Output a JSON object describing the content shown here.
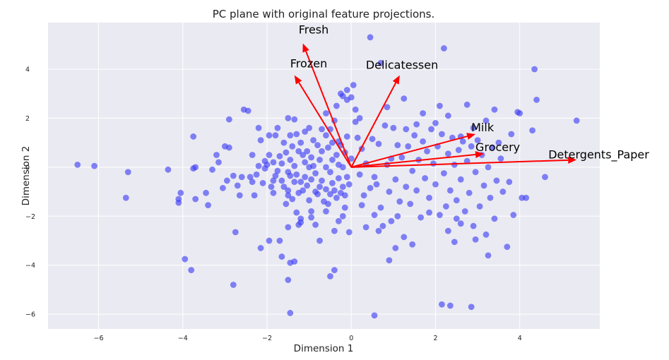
{
  "chart_data": {
    "type": "scatter",
    "title": "PC plane with original feature projections.",
    "xlabel": "Dimension 1",
    "ylabel": "Dimension 2",
    "xlim": [
      -7.2,
      5.9
    ],
    "ylim": [
      -6.6,
      5.9
    ],
    "x_ticks": [
      -6,
      -4,
      -2,
      0,
      2,
      4
    ],
    "y_ticks": [
      -6,
      -4,
      -2,
      0,
      2,
      4
    ],
    "x_tick_labels": [
      "−6",
      "−4",
      "−2",
      "0",
      "2",
      "4"
    ],
    "y_tick_labels": [
      "−6",
      "−4",
      "−2",
      "0",
      "2",
      "4"
    ],
    "grid": true,
    "style": {
      "background": "#eaeaf2",
      "grid_color": "#ffffff",
      "point_color": "#3b3bf5",
      "vector_color": "#ff0000"
    },
    "series": [
      {
        "points": [
          [
            -6.5,
            0.1
          ],
          [
            -6.1,
            0.05
          ],
          [
            -5.3,
            -0.2
          ],
          [
            -5.35,
            -1.25
          ],
          [
            -4.35,
            -0.1
          ],
          [
            -4.1,
            -1.3
          ],
          [
            -4.1,
            -1.45
          ],
          [
            -4.05,
            -1.05
          ],
          [
            -3.95,
            -3.75
          ],
          [
            -3.8,
            -4.2
          ],
          [
            -3.75,
            1.25
          ],
          [
            -3.75,
            -0.05
          ],
          [
            -3.7,
            0.0
          ],
          [
            -3.7,
            -1.3
          ],
          [
            -3.45,
            -1.05
          ],
          [
            -3.4,
            -1.55
          ],
          [
            -3.3,
            -0.1
          ],
          [
            -3.2,
            0.5
          ],
          [
            -3.15,
            0.2
          ],
          [
            -3.05,
            -0.85
          ],
          [
            -3.0,
            0.85
          ],
          [
            -2.9,
            0.8
          ],
          [
            -2.9,
            1.95
          ],
          [
            -2.95,
            -0.55
          ],
          [
            -2.8,
            -4.8
          ],
          [
            -2.8,
            -0.35
          ],
          [
            -2.75,
            -2.65
          ],
          [
            -2.7,
            -0.75
          ],
          [
            -2.65,
            -1.15
          ],
          [
            -2.6,
            -0.4
          ],
          [
            -2.55,
            2.35
          ],
          [
            -2.45,
            2.3
          ],
          [
            -2.4,
            -0.4
          ],
          [
            -2.35,
            0.5
          ],
          [
            -2.35,
            -0.6
          ],
          [
            -2.3,
            -1.15
          ],
          [
            -2.25,
            -0.3
          ],
          [
            -2.2,
            0.05
          ],
          [
            -2.2,
            1.6
          ],
          [
            -2.15,
            1.1
          ],
          [
            -2.1,
            -0.65
          ],
          [
            -2.05,
            0.25
          ],
          [
            -2.05,
            -0.05
          ],
          [
            -2.0,
            0.1
          ],
          [
            -1.95,
            1.3
          ],
          [
            -1.95,
            0.5
          ],
          [
            -1.95,
            -3.0
          ],
          [
            -1.9,
            -0.8
          ],
          [
            -1.85,
            -0.55
          ],
          [
            -1.85,
            0.2
          ],
          [
            -1.8,
            -0.35
          ],
          [
            -1.8,
            1.3
          ],
          [
            -1.75,
            1.6
          ],
          [
            -1.75,
            -0.15
          ],
          [
            -1.7,
            -3.0
          ],
          [
            -1.7,
            0.45
          ],
          [
            -1.65,
            0.15
          ],
          [
            -1.65,
            -0.55
          ],
          [
            -1.6,
            1.0
          ],
          [
            -1.6,
            -0.8
          ],
          [
            -1.55,
            0.6
          ],
          [
            -1.5,
            -0.2
          ],
          [
            -1.5,
            -0.95
          ],
          [
            -1.5,
            -1.15
          ],
          [
            -1.45,
            1.3
          ],
          [
            -1.45,
            0.3
          ],
          [
            -1.4,
            0.85
          ],
          [
            -1.4,
            -1.3
          ],
          [
            -1.35,
            1.95
          ],
          [
            -1.35,
            0.05
          ],
          [
            -1.35,
            -0.6
          ],
          [
            -1.3,
            1.35
          ],
          [
            -1.3,
            -0.3
          ],
          [
            -1.25,
            0.65
          ],
          [
            -1.25,
            -1.05
          ],
          [
            -1.2,
            1.0
          ],
          [
            -1.2,
            -0.6
          ],
          [
            -1.2,
            -2.1
          ],
          [
            -1.15,
            0.5
          ],
          [
            -1.15,
            -0.95
          ],
          [
            -1.1,
            0.2
          ],
          [
            -1.1,
            1.45
          ],
          [
            -1.1,
            -0.4
          ],
          [
            -1.05,
            0.65
          ],
          [
            -1.05,
            -0.75
          ],
          [
            -1.0,
            1.6
          ],
          [
            -1.0,
            0.0
          ],
          [
            -1.0,
            -1.35
          ],
          [
            -0.95,
            0.4
          ],
          [
            -0.95,
            -0.5
          ],
          [
            -0.95,
            -1.8
          ],
          [
            -0.9,
            1.1
          ],
          [
            -0.9,
            0.05
          ],
          [
            -0.85,
            -1.0
          ],
          [
            -0.85,
            -0.25
          ],
          [
            -0.8,
            0.9
          ],
          [
            -0.8,
            -1.1
          ],
          [
            -0.75,
            0.3
          ],
          [
            -0.75,
            -0.8
          ],
          [
            -0.7,
            1.55
          ],
          [
            -0.7,
            0.65
          ],
          [
            -0.7,
            -0.55
          ],
          [
            -0.65,
            -1.4
          ],
          [
            -0.6,
            0.0
          ],
          [
            -0.6,
            1.3
          ],
          [
            -0.6,
            -0.9
          ],
          [
            -0.55,
            -1.5
          ],
          [
            -0.55,
            0.8
          ],
          [
            -0.5,
            -0.2
          ],
          [
            -0.5,
            -1.1
          ],
          [
            -0.45,
            0.3
          ],
          [
            -0.45,
            1.0
          ],
          [
            -0.45,
            -0.65
          ],
          [
            -0.4,
            -0.95
          ],
          [
            -0.4,
            1.9
          ],
          [
            -0.4,
            -2.6
          ],
          [
            -0.35,
            0.5
          ],
          [
            -0.35,
            -1.25
          ],
          [
            -0.3,
            0.1
          ],
          [
            -0.3,
            -0.45
          ],
          [
            -0.25,
            -1.05
          ],
          [
            -0.25,
            0.9
          ],
          [
            -0.2,
            -0.8
          ],
          [
            -0.2,
            0.0
          ],
          [
            -0.15,
            0.6
          ],
          [
            -0.15,
            -1.15
          ],
          [
            -0.1,
            -0.4
          ],
          [
            -0.1,
            1.25
          ],
          [
            -0.05,
            -0.7
          ],
          [
            0.0,
            0.35
          ],
          [
            -1.65,
            -3.65
          ],
          [
            -1.55,
            -1.5
          ],
          [
            -1.5,
            -4.6
          ],
          [
            -1.5,
            2.0
          ],
          [
            -1.45,
            -0.35
          ],
          [
            -1.45,
            -3.9
          ],
          [
            -1.45,
            -5.95
          ],
          [
            -1.35,
            -3.85
          ],
          [
            -1.3,
            -1.85
          ],
          [
            -1.25,
            -2.35
          ],
          [
            -1.2,
            -2.25
          ],
          [
            -0.95,
            -2.05
          ],
          [
            -0.85,
            -2.35
          ],
          [
            -0.6,
            -1.8
          ],
          [
            -0.5,
            -4.45
          ],
          [
            -0.4,
            -4.2
          ],
          [
            -0.3,
            -2.2
          ],
          [
            -0.2,
            -2.0
          ],
          [
            -0.15,
            -1.65
          ],
          [
            -0.05,
            -2.65
          ],
          [
            -2.15,
            -3.3
          ],
          [
            -1.85,
            -1.05
          ],
          [
            -1.5,
            -2.45
          ],
          [
            -0.75,
            -3.0
          ],
          [
            -0.6,
            2.2
          ],
          [
            -0.5,
            1.55
          ],
          [
            -0.35,
            2.5
          ],
          [
            -0.3,
            1.05
          ],
          [
            -0.25,
            3.0
          ],
          [
            -0.2,
            2.9
          ],
          [
            -0.1,
            2.75
          ],
          [
            -0.1,
            3.15
          ],
          [
            0.0,
            2.85
          ],
          [
            0.05,
            3.35
          ],
          [
            0.1,
            1.85
          ],
          [
            0.1,
            2.35
          ],
          [
            0.15,
            1.2
          ],
          [
            0.2,
            -0.3
          ],
          [
            0.2,
            2.0
          ],
          [
            0.25,
            0.75
          ],
          [
            0.3,
            -1.15
          ],
          [
            0.35,
            0.15
          ],
          [
            0.35,
            -2.45
          ],
          [
            0.45,
            -0.85
          ],
          [
            0.5,
            1.15
          ],
          [
            0.55,
            -0.4
          ],
          [
            0.55,
            -1.95
          ],
          [
            0.6,
            -0.7
          ],
          [
            0.65,
            0.95
          ],
          [
            0.7,
            -1.65
          ],
          [
            0.7,
            4.25
          ],
          [
            0.75,
            -2.4
          ],
          [
            0.8,
            1.7
          ],
          [
            0.85,
            0.1
          ],
          [
            0.9,
            -1.0
          ],
          [
            0.9,
            -3.8
          ],
          [
            0.95,
            0.35
          ],
          [
            0.95,
            -2.2
          ],
          [
            1.0,
            1.6
          ],
          [
            1.05,
            -0.5
          ],
          [
            1.1,
            -2.0
          ],
          [
            1.1,
            0.9
          ],
          [
            1.15,
            -1.4
          ],
          [
            1.2,
            0.4
          ],
          [
            1.25,
            -2.85
          ],
          [
            1.3,
            1.55
          ],
          [
            1.3,
            -0.8
          ],
          [
            1.35,
            0.85
          ],
          [
            1.4,
            -1.5
          ],
          [
            1.45,
            -0.15
          ],
          [
            1.5,
            1.3
          ],
          [
            1.55,
            -0.95
          ],
          [
            1.6,
            0.3
          ],
          [
            1.65,
            -2.05
          ],
          [
            1.7,
            1.05
          ],
          [
            1.75,
            -0.45
          ],
          [
            1.8,
            0.65
          ],
          [
            1.85,
            -1.25
          ],
          [
            1.9,
            1.55
          ],
          [
            1.95,
            0.15
          ],
          [
            2.0,
            -0.7
          ],
          [
            2.05,
            0.85
          ],
          [
            2.1,
            -1.95
          ],
          [
            2.15,
            1.35
          ],
          [
            2.2,
            -0.25
          ],
          [
            2.25,
            -1.6
          ],
          [
            2.3,
            0.55
          ],
          [
            2.35,
            -0.95
          ],
          [
            2.4,
            1.2
          ],
          [
            2.45,
            0.1
          ],
          [
            2.5,
            -2.1
          ],
          [
            2.5,
            -1.35
          ],
          [
            2.55,
            0.7
          ],
          [
            2.6,
            -0.5
          ],
          [
            2.65,
            1.05
          ],
          [
            2.7,
            -1.8
          ],
          [
            2.75,
            0.25
          ],
          [
            2.8,
            -1.05
          ],
          [
            2.85,
            0.85
          ],
          [
            2.9,
            -2.4
          ],
          [
            2.95,
            -0.2
          ],
          [
            3.0,
            1.1
          ],
          [
            3.05,
            -1.6
          ],
          [
            3.1,
            0.5
          ],
          [
            3.15,
            -0.75
          ],
          [
            3.2,
            -2.75
          ],
          [
            3.25,
            0.0
          ],
          [
            3.3,
            -1.25
          ],
          [
            3.35,
            0.8
          ],
          [
            3.4,
            -2.1
          ],
          [
            3.45,
            -0.55
          ],
          [
            3.55,
            0.35
          ],
          [
            3.6,
            -1.0
          ],
          [
            3.7,
            -3.25
          ],
          [
            3.75,
            -0.6
          ],
          [
            3.85,
            -1.95
          ],
          [
            3.95,
            2.25
          ],
          [
            4.0,
            2.2
          ],
          [
            4.05,
            -1.25
          ],
          [
            4.15,
            -1.25
          ],
          [
            4.3,
            1.5
          ],
          [
            4.35,
            4.0
          ],
          [
            4.4,
            2.75
          ],
          [
            4.6,
            -0.4
          ],
          [
            5.35,
            1.9
          ],
          [
            2.15,
            -5.6
          ],
          [
            2.35,
            -5.65
          ],
          [
            2.85,
            -5.7
          ],
          [
            0.55,
            -6.05
          ],
          [
            0.45,
            5.3
          ],
          [
            2.2,
            4.85
          ],
          [
            2.1,
            2.5
          ],
          [
            1.55,
            1.75
          ],
          [
            0.85,
            2.45
          ],
          [
            1.25,
            2.8
          ],
          [
            2.3,
            2.1
          ],
          [
            2.6,
            1.25
          ],
          [
            2.9,
            1.6
          ],
          [
            3.2,
            1.9
          ],
          [
            3.5,
            1.0
          ],
          [
            3.8,
            1.35
          ],
          [
            3.4,
            2.35
          ],
          [
            2.75,
            2.55
          ],
          [
            1.7,
            2.2
          ],
          [
            2.0,
            1.8
          ],
          [
            2.3,
            -2.6
          ],
          [
            2.6,
            -2.3
          ],
          [
            2.95,
            -2.95
          ],
          [
            3.25,
            -3.6
          ],
          [
            2.45,
            -3.05
          ],
          [
            1.85,
            -1.85
          ],
          [
            1.45,
            -3.15
          ],
          [
            1.05,
            -3.3
          ],
          [
            0.65,
            -2.6
          ],
          [
            0.25,
            -1.55
          ]
        ]
      }
    ],
    "vectors": [
      {
        "name": "Fresh",
        "x": -1.15,
        "y": 5.05
      },
      {
        "name": "Frozen",
        "x": -1.35,
        "y": 3.75
      },
      {
        "name": "Delicatessen",
        "x": 1.15,
        "y": 3.75
      },
      {
        "name": "Milk",
        "x": 2.95,
        "y": 1.35
      },
      {
        "name": "Grocery",
        "x": 3.15,
        "y": 0.55
      },
      {
        "name": "Detergents_Paper",
        "x": 5.35,
        "y": 0.3
      }
    ]
  }
}
